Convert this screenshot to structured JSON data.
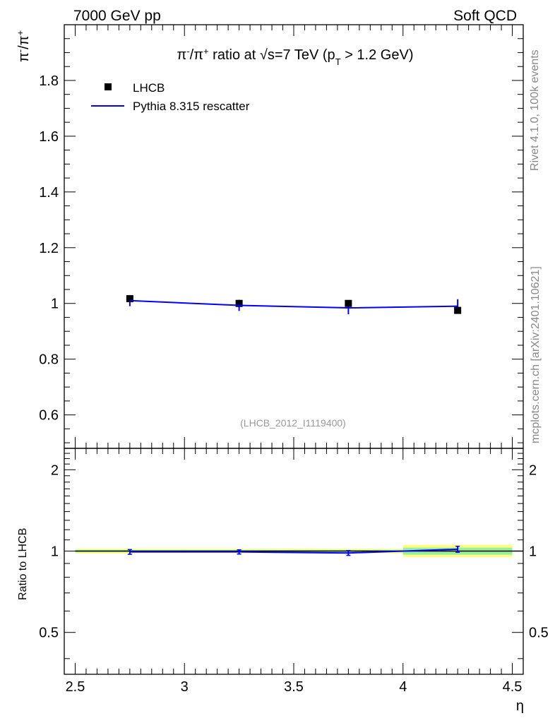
{
  "header": {
    "left_label": "7000 GeV pp",
    "right_label": "Soft QCD"
  },
  "side_labels": {
    "rivet": "Rivet 4.1.0,  100k events",
    "mcplots": "mcplots.cern.ch [arXiv:2401.10621]"
  },
  "title_parts": {
    "part1": "π",
    "sup1": "-",
    "part2": "/π",
    "sup2": "+",
    "part3": " ratio at ",
    "sqrt": "√",
    "part4": "s=7 TeV (p",
    "sub": "T",
    "part5": " > 1.2 GeV)"
  },
  "ylabel_parts": {
    "a": "π",
    "a_sup": "-",
    "b": "/π",
    "b_sup": "+"
  },
  "analysis_id": "(LHCB_2012_I1119400)",
  "colors": {
    "data": "#000000",
    "mc": "#0000ff",
    "band_outer": "#ffff80",
    "band_inner": "#99ee99"
  },
  "chart_data": [
    {
      "type": "scatter",
      "panel": "main",
      "xlim": [
        2.45,
        4.55
      ],
      "ylim": [
        0.48,
        2.0
      ],
      "yticks": [
        0.6,
        0.8,
        1,
        1.2,
        1.4,
        1.6,
        1.8
      ],
      "ytick_labels": [
        "0.6",
        "0.8",
        "1",
        "1.2",
        "1.4",
        "1.6",
        "1.8"
      ],
      "legend": [
        {
          "name": "LHCB",
          "marker": "square"
        },
        {
          "name": "Pythia 8.315 rescatter",
          "marker": "line"
        }
      ],
      "series": [
        {
          "name": "LHCB",
          "x": [
            2.75,
            3.25,
            3.75,
            4.25
          ],
          "y": [
            1.017,
            1.0,
            1.0,
            0.975
          ],
          "xerr": 0.25,
          "yerr": [
            0.01,
            0.01,
            0.01,
            0.01
          ]
        },
        {
          "name": "Pythia 8.315 rescatter",
          "x": [
            2.75,
            3.25,
            3.75,
            4.25
          ],
          "y": [
            1.01,
            0.993,
            0.984,
            0.99
          ],
          "yerr": [
            0.02,
            0.02,
            0.023,
            0.025
          ]
        }
      ]
    },
    {
      "type": "line",
      "panel": "ratio",
      "xlabel": "η",
      "ylabel": "Ratio to LHCB",
      "xlim": [
        2.45,
        4.55
      ],
      "ylim": [
        0.35,
        2.4
      ],
      "yscale": "log",
      "yticks": [
        0.5,
        1,
        2
      ],
      "ytick_labels": [
        "0.5",
        "1",
        "2"
      ],
      "xticks": [
        2.5,
        3,
        3.5,
        4,
        4.5
      ],
      "xtick_labels": [
        "2.5",
        "3",
        "3.5",
        "4",
        "4.5"
      ],
      "bands": [
        {
          "x0": 2.5,
          "x1": 3.0,
          "outer": [
            0.98,
            1.02
          ],
          "inner": [
            0.99,
            1.01
          ]
        },
        {
          "x0": 3.0,
          "x1": 3.5,
          "outer": [
            0.98,
            1.02
          ],
          "inner": [
            0.99,
            1.01
          ]
        },
        {
          "x0": 3.5,
          "x1": 4.0,
          "outer": [
            0.98,
            1.02
          ],
          "inner": [
            0.99,
            1.01
          ]
        },
        {
          "x0": 4.0,
          "x1": 4.5,
          "outer": [
            0.95,
            1.055
          ],
          "inner": [
            0.97,
            1.03
          ]
        }
      ],
      "series": [
        {
          "name": "Pythia 8.315 rescatter / LHCB",
          "x": [
            2.75,
            3.25,
            3.75,
            4.25
          ],
          "y": [
            0.993,
            0.993,
            0.984,
            1.016
          ],
          "yerr": [
            0.02,
            0.018,
            0.02,
            0.026
          ]
        }
      ]
    }
  ]
}
